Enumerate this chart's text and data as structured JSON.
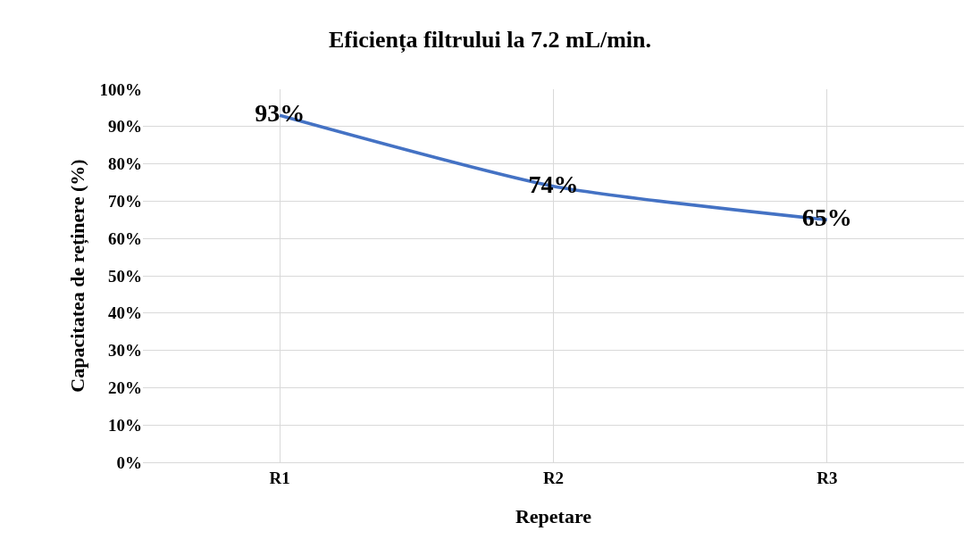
{
  "chart_data": {
    "type": "line",
    "title": "Eficiența filtrului la 7.2 mL/min.",
    "xlabel": "Repetare",
    "ylabel": "Capacitatea de reținere (%)",
    "categories": [
      "R1",
      "R2",
      "R3"
    ],
    "series": [
      {
        "color": "#4472c4",
        "values": [
          93,
          74,
          65
        ],
        "value_labels": [
          "93%",
          "74%",
          "65%"
        ]
      }
    ],
    "ylim": [
      0,
      100
    ],
    "yticks": [
      {
        "value": 0,
        "label": "0%"
      },
      {
        "value": 10,
        "label": "10%"
      },
      {
        "value": 20,
        "label": "20%"
      },
      {
        "value": 30,
        "label": "30%"
      },
      {
        "value": 40,
        "label": "40%"
      },
      {
        "value": 50,
        "label": "50%"
      },
      {
        "value": 60,
        "label": "60%"
      },
      {
        "value": 70,
        "label": "70%"
      },
      {
        "value": 80,
        "label": "80%"
      },
      {
        "value": 90,
        "label": "90%"
      },
      {
        "value": 100,
        "label": "100%"
      }
    ],
    "grid": true,
    "marker": "none",
    "line_style": "solid"
  }
}
